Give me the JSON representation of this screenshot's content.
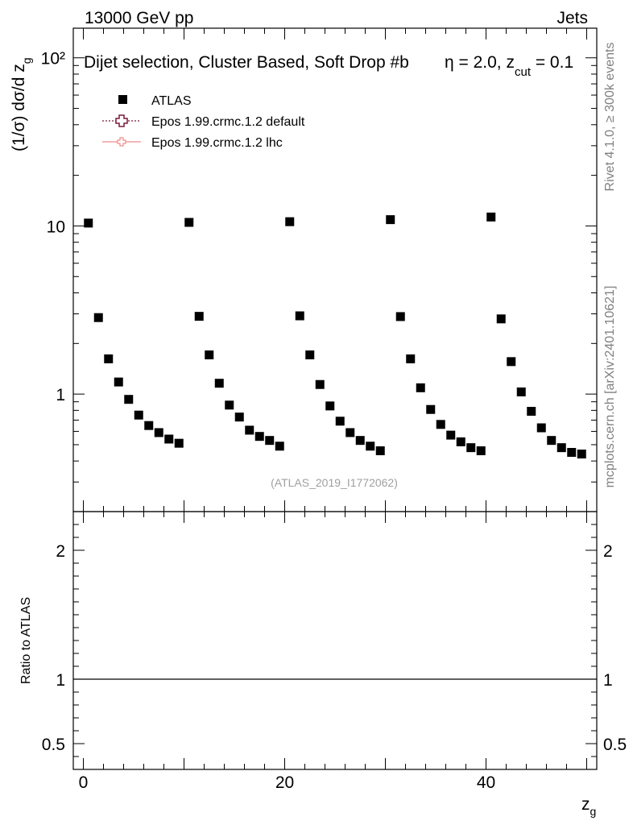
{
  "header": {
    "left": "13000 GeV pp",
    "right": "Jets"
  },
  "side_labels": {
    "rivet": "Rivet 4.1.0, ≥ 300k events",
    "mcplots": "mcplots.cern.ch [arXiv:2401.10621]"
  },
  "chart_data": {
    "type": "scatter",
    "title_parts": {
      "main": "Dijet selection, Cluster Based, Soft Drop #b",
      "eta": "η = 2.0, z",
      "sub": "cut",
      "tail": " = 0.1"
    },
    "watermark": "(ATLAS_2019_I1772062)",
    "xlabel": {
      "main": "z",
      "sub": "g"
    },
    "ylabel_top": {
      "main": "(1/σ) dσ/d z",
      "sub": "g"
    },
    "ylabel_bottom": "Ratio to ATLAS",
    "xlim": [
      -1,
      51
    ],
    "ylim_top": [
      0.2,
      150
    ],
    "yscale_top": "log",
    "ylim_bottom": [
      0.3,
      2.3
    ],
    "x_ticks": [
      "0",
      "20",
      "40"
    ],
    "y_ticks_top": [
      "1",
      "10",
      "10²"
    ],
    "y_ticks_bottom": [
      "0.5",
      "1",
      "2"
    ],
    "ratio_line": 1,
    "legend": {
      "position": "top-left",
      "entries": [
        {
          "label": "ATLAS",
          "style": "square",
          "color": "#000000"
        },
        {
          "label": "Epos 1.99.crmc.1.2 default",
          "style": "dotted-cross",
          "color": "#7b1a3c"
        },
        {
          "label": "Epos 1.99.crmc.1.2 lhc",
          "style": "solid-cross",
          "color": "#f08a8a"
        }
      ]
    },
    "series": [
      {
        "name": "ATLAS",
        "x": [
          0.5,
          1.5,
          2.5,
          3.5,
          4.5,
          5.5,
          6.5,
          7.5,
          8.5,
          9.5,
          10.5,
          11.5,
          12.5,
          13.5,
          14.5,
          15.5,
          16.5,
          17.5,
          18.5,
          19.5,
          20.5,
          21.5,
          22.5,
          23.5,
          24.5,
          25.5,
          26.5,
          27.5,
          28.5,
          29.5,
          30.5,
          31.5,
          32.5,
          33.5,
          34.5,
          35.5,
          36.5,
          37.5,
          38.5,
          39.5,
          40.5,
          41.5,
          42.5,
          43.5,
          44.5,
          45.5,
          46.5,
          47.5,
          48.5,
          49.5
        ],
        "y": [
          10.4,
          2.85,
          1.62,
          1.18,
          0.93,
          0.75,
          0.65,
          0.59,
          0.54,
          0.51,
          10.5,
          2.9,
          1.71,
          1.16,
          0.86,
          0.73,
          0.61,
          0.56,
          0.53,
          0.49,
          10.6,
          2.92,
          1.71,
          1.14,
          0.85,
          0.69,
          0.59,
          0.53,
          0.49,
          0.46,
          10.9,
          2.89,
          1.62,
          1.09,
          0.81,
          0.66,
          0.57,
          0.52,
          0.48,
          0.46,
          11.3,
          2.8,
          1.56,
          1.03,
          0.79,
          0.63,
          0.53,
          0.48,
          0.45,
          0.44
        ]
      }
    ]
  }
}
